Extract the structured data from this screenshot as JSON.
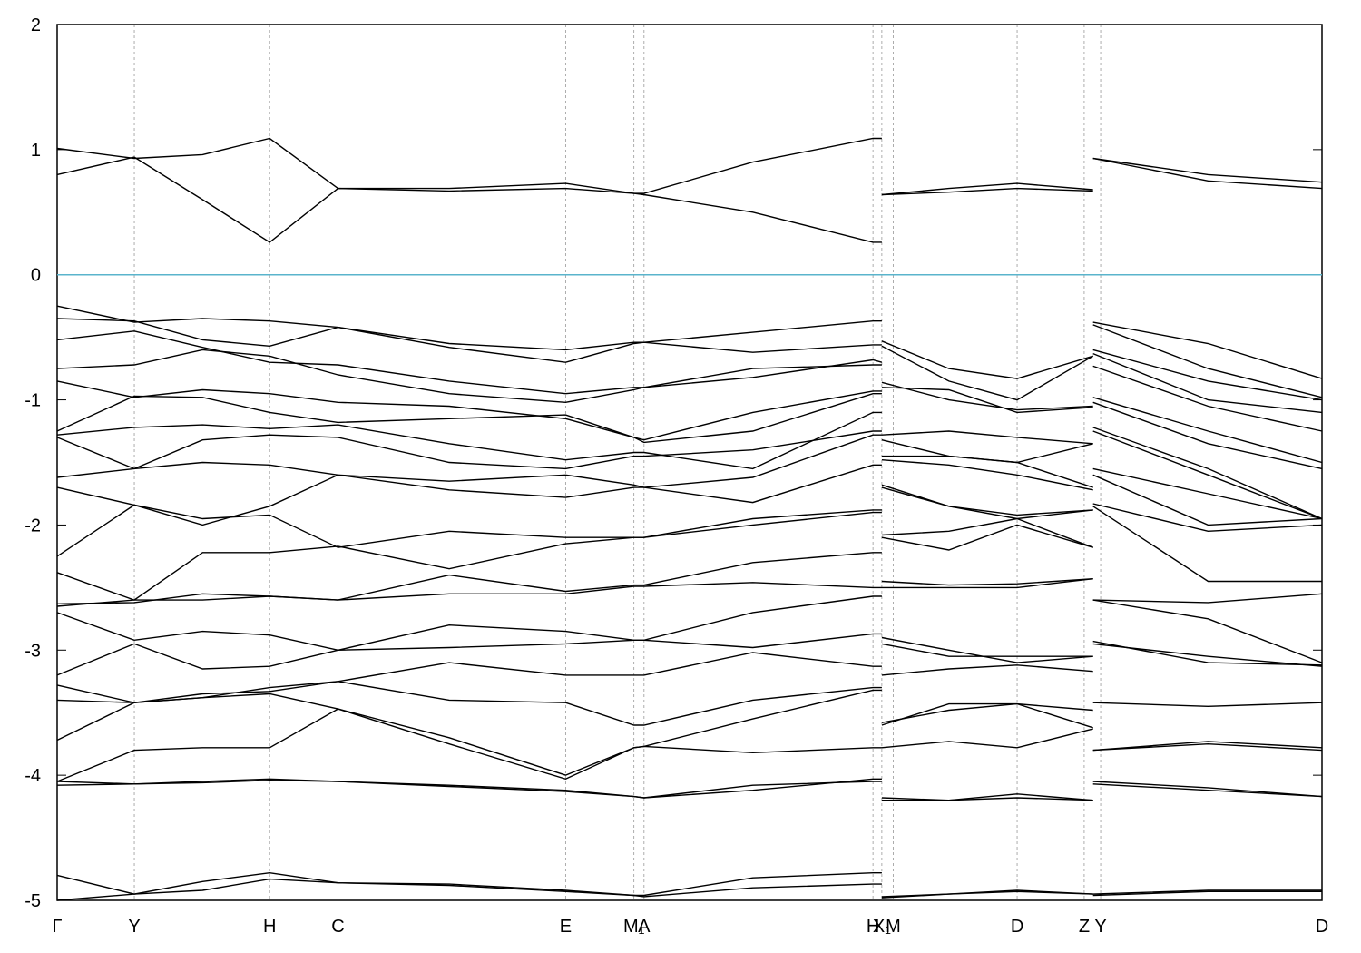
{
  "chart_data": {
    "type": "line",
    "xlim": [
      0,
      1
    ],
    "ylim": [
      -5,
      2
    ],
    "yticks": [
      -5,
      -4,
      -3,
      -2,
      -1,
      0,
      1,
      2
    ],
    "xticks": [
      {
        "value": 0,
        "label": "Γ"
      },
      {
        "value": 0.061,
        "label": "Y"
      },
      {
        "value": 0.168,
        "label": "H"
      },
      {
        "value": 0.222,
        "label": "C"
      },
      {
        "value": 0.402,
        "label": "E"
      },
      {
        "value": 0.456,
        "label": "M₁"
      },
      {
        "value": 0.464,
        "label": "A"
      },
      {
        "value": 0.645,
        "label": "H"
      },
      {
        "value": 0.652,
        "label": "X₁"
      },
      {
        "value": 0.661,
        "label": "M"
      },
      {
        "value": 0.759,
        "label": "D"
      },
      {
        "value": 0.812,
        "label": "Z"
      },
      {
        "value": 0.825,
        "label": "Y"
      },
      {
        "value": 1,
        "label": "D"
      }
    ],
    "hline": {
      "value": 0,
      "color": "#5ab4cc"
    },
    "x": [
      0,
      0.061,
      0.115,
      0.168,
      0.222,
      0.31,
      0.402,
      0.456,
      0.464,
      0.55,
      0.645,
      0.652,
      null,
      0.652,
      0.705,
      0.759,
      0.819,
      null,
      0.819,
      0.91,
      1.0
    ],
    "series": [
      {
        "color": "#000000",
        "values": [
          0.8,
          0.94,
          0.6,
          0.26,
          0.69,
          0.67,
          0.69,
          0.65,
          0.64,
          0.5,
          0.26,
          0.26,
          null,
          0.64,
          0.66,
          0.69,
          0.67,
          null,
          0.93,
          0.75,
          0.69
        ]
      },
      {
        "color": "#000000",
        "values": [
          1.01,
          0.93,
          0.96,
          1.09,
          0.69,
          0.69,
          0.73,
          0.65,
          0.65,
          0.9,
          1.09,
          1.09,
          null,
          0.64,
          0.69,
          0.73,
          0.68,
          null,
          0.93,
          0.8,
          0.74
        ]
      },
      {
        "color": "#000000",
        "values": [
          -0.25,
          -0.38,
          -0.35,
          -0.37,
          -0.42,
          -0.55,
          -0.6,
          -0.54,
          -0.54,
          -0.46,
          -0.37,
          -0.37,
          null,
          -0.53,
          -0.75,
          -0.83,
          -0.65,
          null,
          -0.38,
          -0.55,
          -0.83
        ]
      },
      {
        "color": "#000000",
        "values": [
          -0.35,
          -0.37,
          -0.52,
          -0.57,
          -0.42,
          -0.58,
          -0.7,
          -0.55,
          -0.54,
          -0.62,
          -0.56,
          -0.56,
          null,
          -0.57,
          -0.85,
          -1.0,
          -0.65,
          null,
          -0.4,
          -0.75,
          -0.98
        ]
      },
      {
        "color": "#000000",
        "values": [
          -0.52,
          -0.45,
          -0.58,
          -0.7,
          -0.72,
          -0.85,
          -0.95,
          -0.9,
          -0.9,
          -0.82,
          -0.68,
          -0.7,
          null,
          -0.86,
          -1.0,
          -1.08,
          -1.05,
          null,
          -0.6,
          -0.85,
          -1.0
        ]
      },
      {
        "color": "#000000",
        "values": [
          -0.75,
          -0.72,
          -0.6,
          -0.65,
          -0.8,
          -0.95,
          -1.02,
          -0.92,
          -0.9,
          -0.75,
          -0.72,
          -0.72,
          null,
          -0.9,
          -0.92,
          -1.1,
          -1.06,
          null,
          -0.63,
          -1.0,
          -1.1
        ]
      },
      {
        "color": "#000000",
        "values": [
          -0.85,
          -0.98,
          -0.92,
          -0.95,
          -1.02,
          -1.05,
          -1.15,
          -1.3,
          -1.32,
          -1.1,
          -0.93,
          -0.93,
          null,
          -1.28,
          -1.25,
          -1.3,
          -1.35,
          null,
          -0.73,
          -1.05,
          -1.25
        ]
      },
      {
        "color": "#000000",
        "values": [
          -1.25,
          -0.97,
          -0.98,
          -1.1,
          -1.18,
          -1.15,
          -1.12,
          -1.3,
          -1.34,
          -1.25,
          -0.95,
          -0.95,
          null,
          -1.32,
          -1.45,
          -1.5,
          -1.35,
          null,
          -0.98,
          -1.25,
          -1.5
        ]
      },
      {
        "color": "#000000",
        "values": [
          -1.28,
          -1.22,
          -1.2,
          -1.23,
          -1.2,
          -1.35,
          -1.48,
          -1.42,
          -1.42,
          -1.55,
          -1.1,
          -1.1,
          null,
          -1.45,
          -1.45,
          -1.5,
          -1.7,
          null,
          -1.02,
          -1.35,
          -1.55
        ]
      },
      {
        "color": "#000000",
        "values": [
          -1.3,
          -1.55,
          -1.32,
          -1.28,
          -1.3,
          -1.5,
          -1.55,
          -1.45,
          -1.45,
          -1.4,
          -1.25,
          -1.25,
          null,
          -1.48,
          -1.52,
          -1.6,
          -1.72,
          null,
          -1.22,
          -1.55,
          -1.95
        ]
      },
      {
        "color": "#000000",
        "values": [
          -1.62,
          -1.55,
          -1.5,
          -1.52,
          -1.6,
          -1.65,
          -1.6,
          -1.68,
          -1.7,
          -1.62,
          -1.28,
          -1.28,
          null,
          -1.68,
          -1.85,
          -1.95,
          -1.88,
          null,
          -1.25,
          -1.6,
          -1.95
        ]
      },
      {
        "color": "#000000",
        "values": [
          -1.7,
          -1.84,
          -2.0,
          -1.85,
          -1.6,
          -1.72,
          -1.78,
          -1.7,
          -1.7,
          -1.82,
          -1.52,
          -1.52,
          null,
          -1.7,
          -1.85,
          -1.92,
          -1.88,
          null,
          -1.55,
          -1.75,
          -1.95
        ]
      },
      {
        "color": "#000000",
        "values": [
          -2.25,
          -1.84,
          -1.95,
          -1.92,
          -2.18,
          -2.05,
          -2.1,
          -2.1,
          -2.1,
          -2.0,
          -1.9,
          -1.9,
          null,
          -2.08,
          -2.05,
          -1.95,
          -2.18,
          null,
          -1.6,
          -2.0,
          -1.95
        ]
      },
      {
        "color": "#000000",
        "values": [
          -2.38,
          -2.6,
          -2.22,
          -2.22,
          -2.17,
          -2.35,
          -2.15,
          -2.1,
          -2.1,
          -1.95,
          -1.88,
          -1.88,
          null,
          -2.1,
          -2.2,
          -2.0,
          -2.18,
          null,
          -1.83,
          -2.05,
          -2.0
        ]
      },
      {
        "color": "#000000",
        "values": [
          -2.63,
          -2.62,
          -2.55,
          -2.57,
          -2.6,
          -2.4,
          -2.53,
          -2.48,
          -2.48,
          -2.3,
          -2.22,
          -2.22,
          null,
          -2.45,
          -2.48,
          -2.47,
          -2.43,
          null,
          -1.85,
          -2.45,
          -2.45
        ]
      },
      {
        "color": "#000000",
        "values": [
          -2.65,
          -2.6,
          -2.6,
          -2.57,
          -2.6,
          -2.55,
          -2.55,
          -2.49,
          -2.49,
          -2.46,
          -2.5,
          -2.5,
          null,
          -2.5,
          -2.5,
          -2.5,
          -2.43,
          null,
          -2.6,
          -2.62,
          -2.55
        ]
      },
      {
        "color": "#000000",
        "values": [
          -2.7,
          -2.92,
          -2.85,
          -2.88,
          -3.0,
          -2.8,
          -2.85,
          -2.92,
          -2.92,
          -2.7,
          -2.57,
          -2.57,
          null,
          -2.9,
          -3.0,
          -3.1,
          -3.05,
          null,
          -2.6,
          -2.75,
          -3.1
        ]
      },
      {
        "color": "#000000",
        "values": [
          -3.2,
          -2.95,
          -3.15,
          -3.13,
          -3.0,
          -2.98,
          -2.95,
          -2.92,
          -2.92,
          -2.98,
          -2.87,
          -2.87,
          null,
          -2.95,
          -3.05,
          -3.05,
          -3.05,
          null,
          -2.93,
          -3.1,
          -3.12
        ]
      },
      {
        "color": "#000000",
        "values": [
          -3.28,
          -3.42,
          -3.38,
          -3.3,
          -3.25,
          -3.1,
          -3.2,
          -3.2,
          -3.2,
          -3.02,
          -3.13,
          -3.13,
          null,
          -3.2,
          -3.15,
          -3.12,
          -3.17,
          null,
          -2.95,
          -3.05,
          -3.13
        ]
      },
      {
        "color": "#000000",
        "values": [
          -3.4,
          -3.42,
          -3.35,
          -3.33,
          -3.25,
          -3.4,
          -3.42,
          -3.6,
          -3.6,
          -3.4,
          -3.3,
          -3.3,
          null,
          -3.58,
          -3.48,
          -3.43,
          -3.48,
          null,
          -3.42,
          -3.45,
          -3.42
        ]
      },
      {
        "color": "#000000",
        "values": [
          -3.72,
          -3.42,
          -3.38,
          -3.35,
          -3.47,
          -3.7,
          -4.0,
          -3.78,
          -3.77,
          -3.55,
          -3.32,
          -3.32,
          null,
          -3.6,
          -3.43,
          -3.43,
          -3.62,
          null,
          -3.8,
          -3.73,
          -3.78
        ]
      },
      {
        "color": "#000000",
        "values": [
          -4.05,
          -3.8,
          -3.78,
          -3.78,
          -3.47,
          -3.75,
          -4.03,
          -3.78,
          -3.77,
          -3.82,
          -3.78,
          -3.78,
          null,
          -3.78,
          -3.73,
          -3.78,
          -3.63,
          null,
          -3.8,
          -3.75,
          -3.8
        ]
      },
      {
        "color": "#000000",
        "values": [
          -4.05,
          -4.07,
          -4.05,
          -4.03,
          -4.05,
          -4.08,
          -4.12,
          -4.17,
          -4.18,
          -4.12,
          -4.03,
          -4.03,
          null,
          -4.18,
          -4.2,
          -4.15,
          -4.2,
          null,
          -4.05,
          -4.1,
          -4.17
        ]
      },
      {
        "color": "#000000",
        "values": [
          -4.08,
          -4.07,
          -4.06,
          -4.04,
          -4.05,
          -4.09,
          -4.13,
          -4.17,
          -4.18,
          -4.08,
          -4.05,
          -4.05,
          null,
          -4.2,
          -4.2,
          -4.18,
          -4.2,
          null,
          -4.07,
          -4.12,
          -4.17
        ]
      },
      {
        "color": "#000000",
        "values": [
          -4.8,
          -4.95,
          -4.85,
          -4.78,
          -4.86,
          -4.87,
          -4.92,
          -4.96,
          -4.96,
          -4.82,
          -4.78,
          -4.78,
          null,
          -4.98,
          -4.95,
          -4.92,
          -4.95,
          null,
          -4.95,
          -4.92,
          -4.92
        ]
      },
      {
        "color": "#000000",
        "values": [
          -5.0,
          -4.95,
          -4.92,
          -4.83,
          -4.86,
          -4.88,
          -4.93,
          -4.96,
          -4.97,
          -4.9,
          -4.87,
          -4.87,
          null,
          -4.97,
          -4.95,
          -4.93,
          -4.95,
          null,
          -4.96,
          -4.93,
          -4.93
        ]
      }
    ]
  }
}
